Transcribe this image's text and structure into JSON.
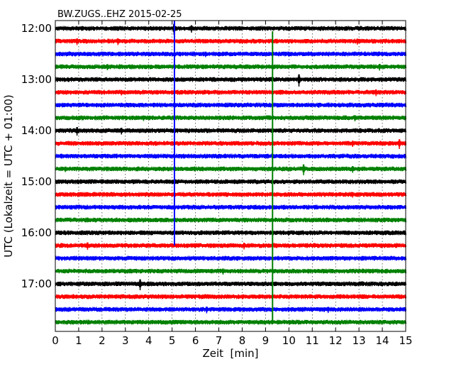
{
  "chart_data": {
    "type": "line",
    "title": "BW.ZUGS..EHZ 2015-02-25",
    "xlabel": "Zeit  [min]",
    "ylabel": "UTC (Lokalzeit = UTC + 01:00)",
    "xlim": [
      0,
      15
    ],
    "xticks": [
      0,
      1,
      2,
      3,
      4,
      5,
      6,
      7,
      8,
      9,
      10,
      11,
      12,
      13,
      14,
      15
    ],
    "row_interval_minutes": 15,
    "row_start": "12:00",
    "row_count": 24,
    "yticks": [
      {
        "label": "12:00",
        "row": 0
      },
      {
        "label": "13:00",
        "row": 4
      },
      {
        "label": "14:00",
        "row": 8
      },
      {
        "label": "15:00",
        "row": 12
      },
      {
        "label": "16:00",
        "row": 16
      },
      {
        "label": "17:00",
        "row": 20
      }
    ],
    "grid": true,
    "trace_colors": [
      "#000000",
      "#ff0000",
      "#0000ff",
      "#008000"
    ],
    "events": [
      {
        "row": 0,
        "minute": 5.1,
        "amp": 0.9
      },
      {
        "row": 0,
        "minute": 5.85,
        "amp": 0.6
      },
      {
        "row": 1,
        "minute": 0.95,
        "amp": 0.55
      },
      {
        "row": 1,
        "minute": 2.7,
        "amp": 0.55
      },
      {
        "row": 1,
        "minute": 12.95,
        "amp": 0.5
      },
      {
        "row": 2,
        "minute": 6.45,
        "amp": 0.45
      },
      {
        "row": 3,
        "minute": 2.25,
        "amp": 0.5
      },
      {
        "row": 3,
        "minute": 13.9,
        "amp": 0.55
      },
      {
        "row": 4,
        "minute": 10.45,
        "amp": 1.0
      },
      {
        "row": 5,
        "minute": 2.85,
        "amp": 0.45
      },
      {
        "row": 5,
        "minute": 13.75,
        "amp": 0.55
      },
      {
        "row": 6,
        "minute": 11.3,
        "amp": 0.4
      },
      {
        "row": 7,
        "minute": 3.8,
        "amp": 0.45
      },
      {
        "row": 7,
        "minute": 12.85,
        "amp": 0.5
      },
      {
        "row": 8,
        "minute": 0.95,
        "amp": 0.7
      },
      {
        "row": 8,
        "minute": 2.85,
        "amp": 0.55
      },
      {
        "row": 9,
        "minute": 12.75,
        "amp": 0.5
      },
      {
        "row": 9,
        "minute": 14.75,
        "amp": 0.8
      },
      {
        "row": 10,
        "minute": 5.0,
        "amp": 0.3
      },
      {
        "row": 11,
        "minute": 0.45,
        "amp": 0.45
      },
      {
        "row": 11,
        "minute": 10.65,
        "amp": 0.9
      },
      {
        "row": 11,
        "minute": 12.75,
        "amp": 0.55
      },
      {
        "row": 12,
        "minute": 14.5,
        "amp": 0.35
      },
      {
        "row": 13,
        "minute": 2.25,
        "amp": 0.35
      },
      {
        "row": 13,
        "minute": 12.75,
        "amp": 0.45
      },
      {
        "row": 14,
        "minute": 12.2,
        "amp": 0.3
      },
      {
        "row": 15,
        "minute": 3.15,
        "amp": 0.3
      },
      {
        "row": 16,
        "minute": 10.0,
        "amp": 0.4
      },
      {
        "row": 17,
        "minute": 1.4,
        "amp": 0.6
      },
      {
        "row": 17,
        "minute": 8.1,
        "amp": 0.55
      },
      {
        "row": 18,
        "minute": 13.2,
        "amp": 0.3
      },
      {
        "row": 19,
        "minute": 7.2,
        "amp": 0.5
      },
      {
        "row": 20,
        "minute": 3.65,
        "amp": 0.9
      },
      {
        "row": 21,
        "minute": 9.3,
        "amp": 0.3
      },
      {
        "row": 22,
        "minute": 6.5,
        "amp": 0.55
      },
      {
        "row": 22,
        "minute": 11.7,
        "amp": 0.5
      }
    ],
    "vertical_glitches": [
      {
        "color": "#0000ff",
        "minute": 5.1,
        "row_from": 0,
        "row_to": 17
      },
      {
        "color": "#008000",
        "minute": 9.3,
        "row_from": 1,
        "row_to": 23
      }
    ]
  }
}
